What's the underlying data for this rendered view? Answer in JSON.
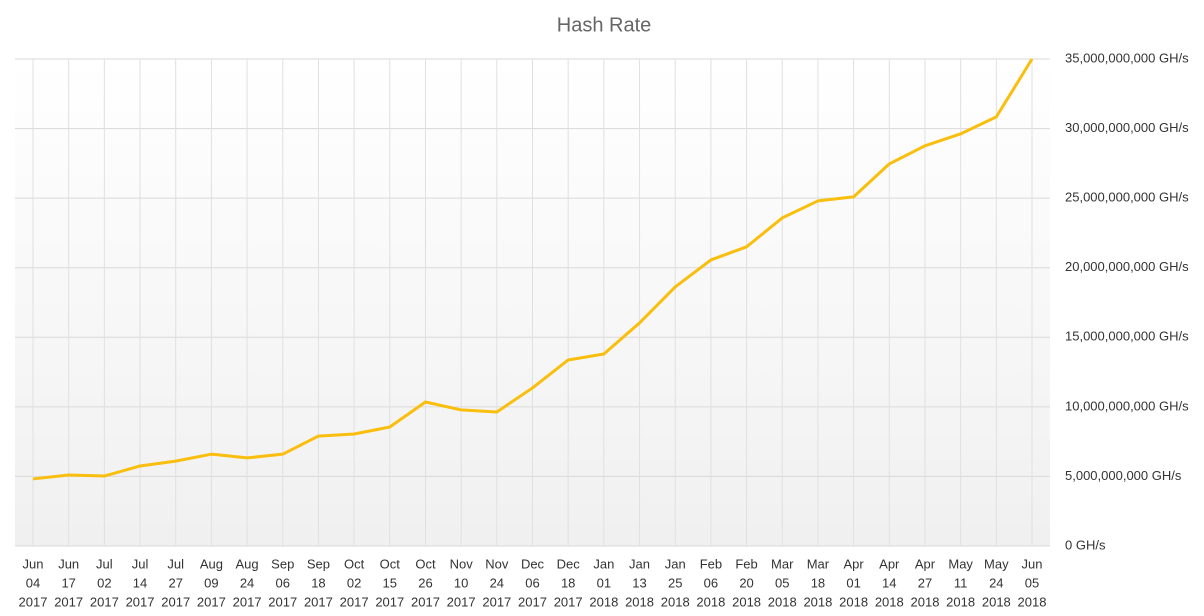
{
  "chart_data": {
    "type": "line",
    "title": "Hash Rate",
    "categories": [
      [
        "Jun",
        "04",
        "2017"
      ],
      [
        "Jun",
        "17",
        "2017"
      ],
      [
        "Jul",
        "02",
        "2017"
      ],
      [
        "Jul",
        "14",
        "2017"
      ],
      [
        "Jul",
        "27",
        "2017"
      ],
      [
        "Aug",
        "09",
        "2017"
      ],
      [
        "Aug",
        "24",
        "2017"
      ],
      [
        "Sep",
        "06",
        "2017"
      ],
      [
        "Sep",
        "18",
        "2017"
      ],
      [
        "Oct",
        "02",
        "2017"
      ],
      [
        "Oct",
        "15",
        "2017"
      ],
      [
        "Oct",
        "26",
        "2017"
      ],
      [
        "Nov",
        "10",
        "2017"
      ],
      [
        "Nov",
        "24",
        "2017"
      ],
      [
        "Dec",
        "06",
        "2017"
      ],
      [
        "Dec",
        "18",
        "2017"
      ],
      [
        "Jan",
        "01",
        "2018"
      ],
      [
        "Jan",
        "13",
        "2018"
      ],
      [
        "Jan",
        "25",
        "2018"
      ],
      [
        "Feb",
        "06",
        "2018"
      ],
      [
        "Feb",
        "20",
        "2018"
      ],
      [
        "Mar",
        "05",
        "2018"
      ],
      [
        "Mar",
        "18",
        "2018"
      ],
      [
        "Apr",
        "01",
        "2018"
      ],
      [
        "Apr",
        "14",
        "2018"
      ],
      [
        "Apr",
        "27",
        "2018"
      ],
      [
        "May",
        "11",
        "2018"
      ],
      [
        "May",
        "24",
        "2018"
      ],
      [
        "Jun",
        "05",
        "2018"
      ]
    ],
    "series": [
      {
        "name": "Hash Rate",
        "color": "#f9be0e",
        "values": [
          4820000000,
          5100000000,
          5030000000,
          5750000000,
          6100000000,
          6600000000,
          6330000000,
          6600000000,
          7900000000,
          8050000000,
          8550000000,
          10350000000,
          9780000000,
          9630000000,
          11360000000,
          13370000000,
          13800000000,
          16030000000,
          18620000000,
          20560000000,
          21500000000,
          23580000000,
          24800000000,
          25090000000,
          27460000000,
          28760000000,
          29620000000,
          30840000000,
          35000000000
        ]
      }
    ],
    "ylim": [
      0,
      35000000000
    ],
    "yticks": [
      {
        "value": 0,
        "label": "0 GH/s"
      },
      {
        "value": 5000000000,
        "label": "5,000,000,000 GH/s"
      },
      {
        "value": 10000000000,
        "label": "10,000,000,000 GH/s"
      },
      {
        "value": 15000000000,
        "label": "15,000,000,000 GH/s"
      },
      {
        "value": 20000000000,
        "label": "20,000,000,000 GH/s"
      },
      {
        "value": 25000000000,
        "label": "25,000,000,000 GH/s"
      },
      {
        "value": 30000000000,
        "label": "30,000,000,000 GH/s"
      },
      {
        "value": 35000000000,
        "label": "35,000,000,000 GH/s"
      }
    ],
    "grid": true
  }
}
